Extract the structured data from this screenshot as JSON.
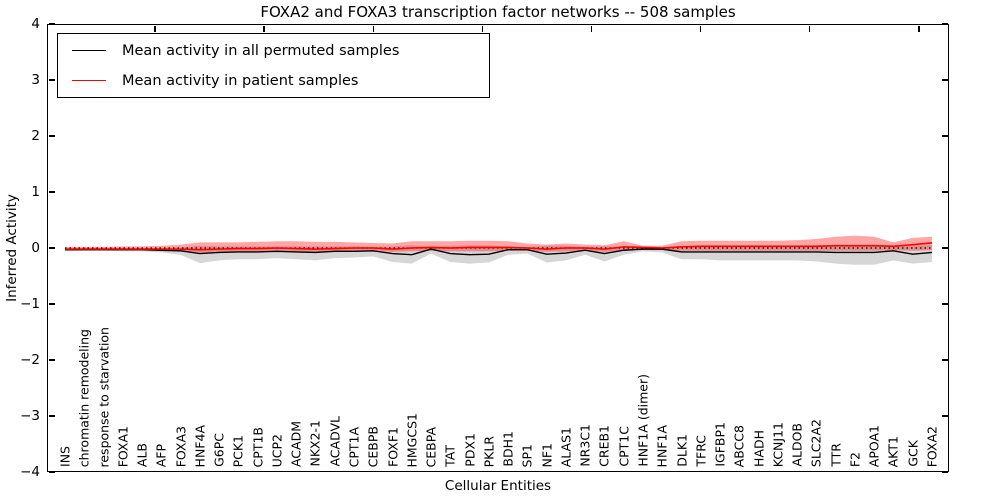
{
  "figure": {
    "title": "FOXA2 and FOXA3 transcription factor networks -- 508 samples"
  },
  "chart_data": {
    "type": "line",
    "title": "FOXA2 and FOXA3 transcription factor networks -- 508 samples",
    "xlabel": "Cellular Entities",
    "ylabel": "Inferred Activity",
    "ylim": [
      -4,
      4
    ],
    "grid": false,
    "legend_position": "upper left",
    "zero_reference_line": 0,
    "yticks": [
      {
        "label": "4",
        "value": 4
      },
      {
        "label": "3",
        "value": 3
      },
      {
        "label": "2",
        "value": 2
      },
      {
        "label": "1",
        "value": 1
      },
      {
        "label": "0",
        "value": 0
      },
      {
        "label": "−1",
        "value": -1
      },
      {
        "label": "−2",
        "value": -2
      },
      {
        "label": "−3",
        "value": -3
      },
      {
        "label": "−4",
        "value": -4
      }
    ],
    "categories": [
      "INS",
      "chromatin remodeling",
      "response to starvation",
      "FOXA1",
      "ALB",
      "AFP",
      "FOXA3",
      "HNF4A",
      "G6PC",
      "PCK1",
      "CPT1B",
      "UCP2",
      "ACADM",
      "NKX2-1",
      "ACADVL",
      "CPT1A",
      "CEBPB",
      "FOXF1",
      "HMGCS1",
      "CEBPA",
      "TAT",
      "PDX1",
      "PKLR",
      "BDH1",
      "SP1",
      "NF1",
      "ALAS1",
      "NR3C1",
      "CREB1",
      "CPT1C",
      "HNF1A (dimer)",
      "HNF1A",
      "DLK1",
      "TFRC",
      "IGFBP1",
      "ABCC8",
      "HADH",
      "KCNJ11",
      "ALDOB",
      "SLC2A2",
      "TTR",
      "F2",
      "APOA1",
      "AKT1",
      "GCK",
      "FOXA2"
    ],
    "series": [
      {
        "name": "Mean activity in all permuted samples",
        "color": "#000000",
        "band_color": "rgba(0,0,0,0.16)",
        "values": [
          -0.03,
          -0.03,
          -0.03,
          -0.03,
          -0.03,
          -0.04,
          -0.05,
          -0.1,
          -0.08,
          -0.07,
          -0.07,
          -0.06,
          -0.07,
          -0.08,
          -0.06,
          -0.06,
          -0.05,
          -0.1,
          -0.12,
          -0.02,
          -0.1,
          -0.12,
          -0.11,
          -0.03,
          -0.03,
          -0.11,
          -0.09,
          -0.04,
          -0.1,
          -0.04,
          -0.02,
          -0.02,
          -0.07,
          -0.07,
          -0.07,
          -0.07,
          -0.07,
          -0.07,
          -0.07,
          -0.07,
          -0.08,
          -0.08,
          -0.08,
          -0.05,
          -0.11,
          -0.08
        ],
        "band_lower": [
          -0.06,
          -0.05,
          -0.05,
          -0.06,
          -0.06,
          -0.08,
          -0.12,
          -0.27,
          -0.22,
          -0.2,
          -0.2,
          -0.18,
          -0.2,
          -0.22,
          -0.18,
          -0.17,
          -0.15,
          -0.25,
          -0.28,
          -0.1,
          -0.25,
          -0.28,
          -0.26,
          -0.12,
          -0.1,
          -0.26,
          -0.22,
          -0.12,
          -0.24,
          -0.12,
          -0.06,
          -0.08,
          -0.2,
          -0.2,
          -0.22,
          -0.22,
          -0.22,
          -0.22,
          -0.22,
          -0.24,
          -0.28,
          -0.3,
          -0.3,
          -0.22,
          -0.28,
          -0.25
        ],
        "band_upper": [
          -0.01,
          0.0,
          0.0,
          0.0,
          0.0,
          0.0,
          0.01,
          0.04,
          0.03,
          0.03,
          0.03,
          0.03,
          0.03,
          0.03,
          0.03,
          0.03,
          0.02,
          0.03,
          0.05,
          0.02,
          0.04,
          0.05,
          0.05,
          0.02,
          0.02,
          0.04,
          0.04,
          0.02,
          0.03,
          0.02,
          0.01,
          0.01,
          0.04,
          0.04,
          0.04,
          0.04,
          0.04,
          0.04,
          0.04,
          0.05,
          0.06,
          0.06,
          0.06,
          0.04,
          0.05,
          0.05
        ]
      },
      {
        "name": "Mean activity in patient samples",
        "color": "#ff0000",
        "band_color": "rgba(255,0,0,0.35)",
        "values": [
          -0.02,
          -0.02,
          -0.02,
          -0.02,
          -0.02,
          -0.02,
          -0.02,
          -0.03,
          -0.02,
          -0.01,
          -0.01,
          0.0,
          -0.01,
          -0.02,
          -0.01,
          0.0,
          0.0,
          -0.02,
          0.0,
          0.01,
          0.0,
          0.01,
          0.01,
          0.01,
          0.0,
          -0.02,
          0.0,
          0.0,
          -0.02,
          0.02,
          0.01,
          0.0,
          0.02,
          0.03,
          0.03,
          0.03,
          0.03,
          0.03,
          0.03,
          0.03,
          0.04,
          0.04,
          0.04,
          0.03,
          0.06,
          0.09
        ],
        "band_lower": [
          -0.04,
          -0.04,
          -0.04,
          -0.04,
          -0.04,
          -0.05,
          -0.05,
          -0.08,
          -0.07,
          -0.06,
          -0.06,
          -0.06,
          -0.06,
          -0.07,
          -0.06,
          -0.05,
          -0.05,
          -0.07,
          -0.06,
          -0.05,
          -0.06,
          -0.06,
          -0.06,
          -0.05,
          -0.05,
          -0.07,
          -0.06,
          -0.05,
          -0.07,
          -0.04,
          -0.03,
          -0.03,
          -0.05,
          -0.05,
          -0.05,
          -0.05,
          -0.05,
          -0.05,
          -0.05,
          -0.05,
          -0.05,
          -0.05,
          -0.05,
          -0.04,
          -0.05,
          -0.04
        ],
        "band_upper": [
          0.02,
          0.02,
          0.02,
          0.03,
          0.03,
          0.04,
          0.06,
          0.1,
          0.1,
          0.1,
          0.11,
          0.12,
          0.12,
          0.11,
          0.11,
          0.1,
          0.09,
          0.08,
          0.12,
          0.12,
          0.12,
          0.13,
          0.13,
          0.12,
          0.08,
          0.06,
          0.08,
          0.06,
          0.05,
          0.12,
          0.04,
          0.04,
          0.12,
          0.13,
          0.13,
          0.13,
          0.13,
          0.13,
          0.14,
          0.16,
          0.2,
          0.22,
          0.2,
          0.1,
          0.18,
          0.2
        ]
      }
    ]
  }
}
